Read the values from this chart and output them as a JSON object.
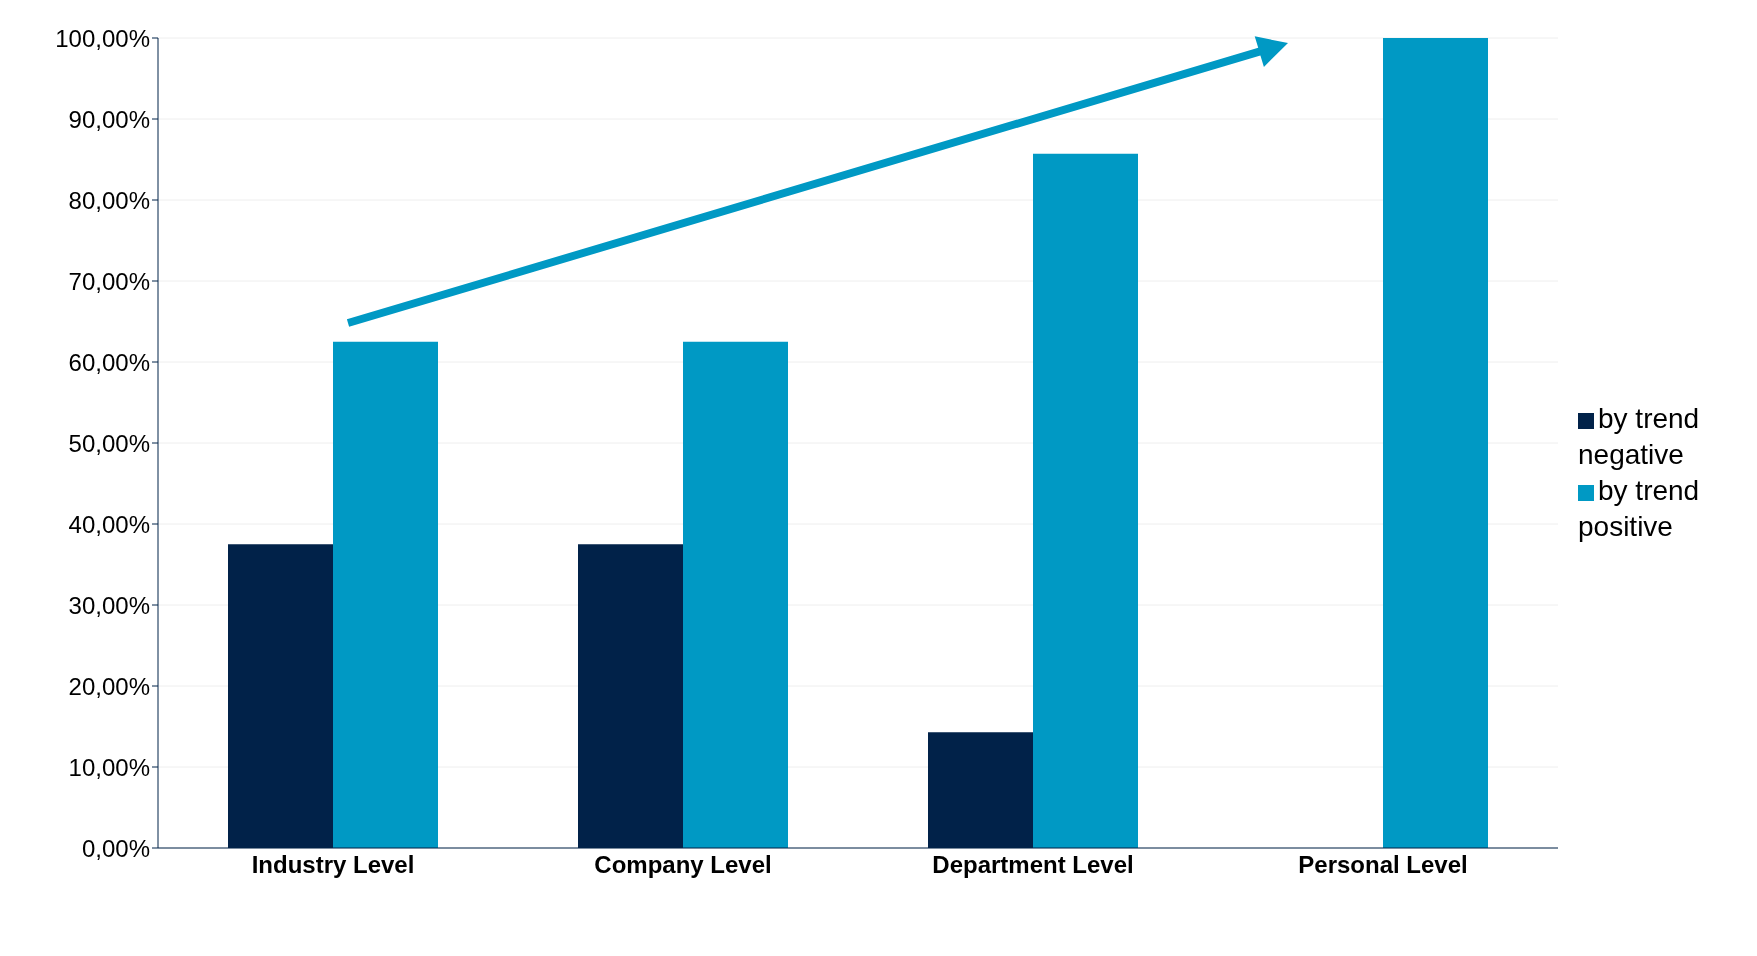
{
  "chart_data": {
    "type": "bar",
    "categories": [
      "Industry Level",
      "Company Level",
      "Department Level",
      "Personal Level"
    ],
    "series": [
      {
        "name": "by trend negative",
        "color": "#012249",
        "values": [
          37.5,
          37.5,
          14.3,
          0
        ]
      },
      {
        "name": "by trend positive",
        "color": "#0099c4",
        "values": [
          62.5,
          62.5,
          85.7,
          100
        ]
      }
    ],
    "ylim": [
      0,
      100
    ],
    "yticks": [
      {
        "value": 0,
        "label": "0,00%"
      },
      {
        "value": 10,
        "label": "10,00%"
      },
      {
        "value": 20,
        "label": "20,00%"
      },
      {
        "value": 30,
        "label": "30,00%"
      },
      {
        "value": 40,
        "label": "40,00%"
      },
      {
        "value": 50,
        "label": "50,00%"
      },
      {
        "value": 60,
        "label": "60,00%"
      },
      {
        "value": 70,
        "label": "70,00%"
      },
      {
        "value": 80,
        "label": "80,00%"
      },
      {
        "value": 90,
        "label": "90,00%"
      },
      {
        "value": 100,
        "label": "100,00%"
      }
    ],
    "grid": "y",
    "legend": "right"
  }
}
